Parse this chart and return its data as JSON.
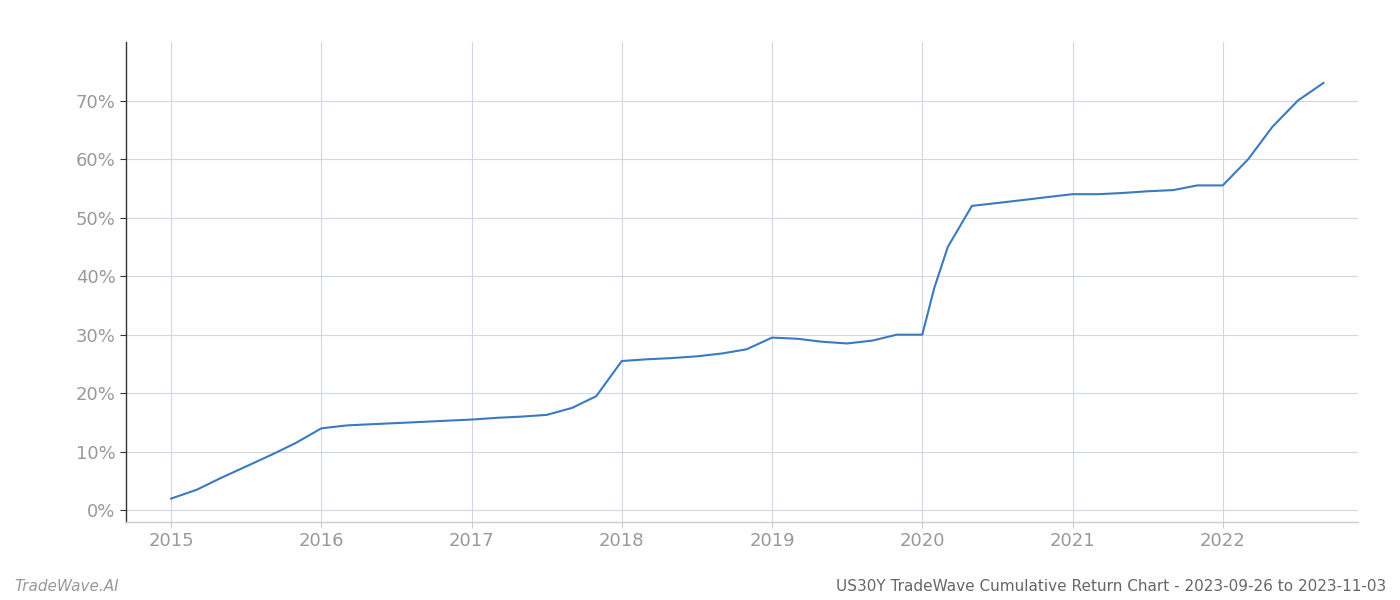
{
  "title": "US30Y TradeWave Cumulative Return Chart - 2023-09-26 to 2023-11-03",
  "watermark": "TradeWave.AI",
  "line_color": "#3a7abf",
  "background_color": "#ffffff",
  "grid_color": "#d0d8e8",
  "x_data": [
    2015.0,
    2015.17,
    2015.33,
    2015.5,
    2015.67,
    2015.83,
    2016.0,
    2016.17,
    2016.33,
    2016.5,
    2016.67,
    2016.83,
    2017.0,
    2017.17,
    2017.33,
    2017.5,
    2017.67,
    2017.83,
    2018.0,
    2018.17,
    2018.33,
    2018.5,
    2018.67,
    2018.83,
    2019.0,
    2019.17,
    2019.33,
    2019.5,
    2019.67,
    2019.83,
    2020.0,
    2020.08,
    2020.17,
    2020.33,
    2020.5,
    2020.67,
    2020.83,
    2021.0,
    2021.17,
    2021.33,
    2021.5,
    2021.67,
    2021.83,
    2022.0,
    2022.17,
    2022.33,
    2022.5,
    2022.67
  ],
  "y_data": [
    2.0,
    3.5,
    5.5,
    7.5,
    9.5,
    11.5,
    14.0,
    14.5,
    14.7,
    14.9,
    15.1,
    15.3,
    15.5,
    15.8,
    16.0,
    16.3,
    17.5,
    19.5,
    25.5,
    25.8,
    26.0,
    26.3,
    26.8,
    27.5,
    29.5,
    29.3,
    28.8,
    28.5,
    29.0,
    30.0,
    30.0,
    38.0,
    45.0,
    52.0,
    52.5,
    53.0,
    53.5,
    54.0,
    54.0,
    54.2,
    54.5,
    54.7,
    55.5,
    55.5,
    60.0,
    65.5,
    70.0,
    73.0
  ],
  "xlim": [
    2014.7,
    2022.9
  ],
  "ylim": [
    -2,
    80
  ],
  "yticks": [
    0,
    10,
    20,
    30,
    40,
    50,
    60,
    70
  ],
  "xticks": [
    2015,
    2016,
    2017,
    2018,
    2019,
    2020,
    2021,
    2022
  ],
  "line_width": 1.5,
  "tick_label_color": "#999999",
  "spine_color": "#cccccc",
  "left_spine_color": "#333333",
  "title_color": "#666666",
  "watermark_color": "#999999",
  "tick_fontsize": 13,
  "title_fontsize": 11,
  "watermark_fontsize": 11
}
